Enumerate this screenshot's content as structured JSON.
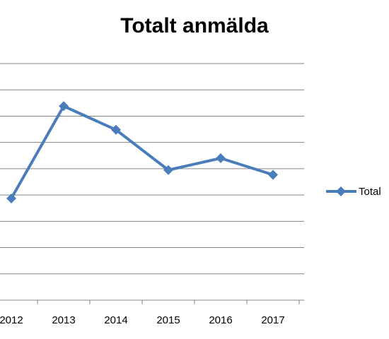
{
  "chart_data": {
    "type": "line",
    "title": "Totalt anmälda",
    "xlabel": "",
    "ylabel": "",
    "categories": [
      "2012",
      "2013",
      "2014",
      "2015",
      "2016",
      "2017"
    ],
    "series": [
      {
        "name": "Total",
        "values": [
          4.3,
          8.2,
          7.2,
          5.5,
          6.0,
          5.3
        ],
        "color": "#4a7ebb",
        "marker": "diamond"
      }
    ],
    "ylim": [
      0,
      10
    ],
    "grid": true,
    "legend_position": "right"
  }
}
